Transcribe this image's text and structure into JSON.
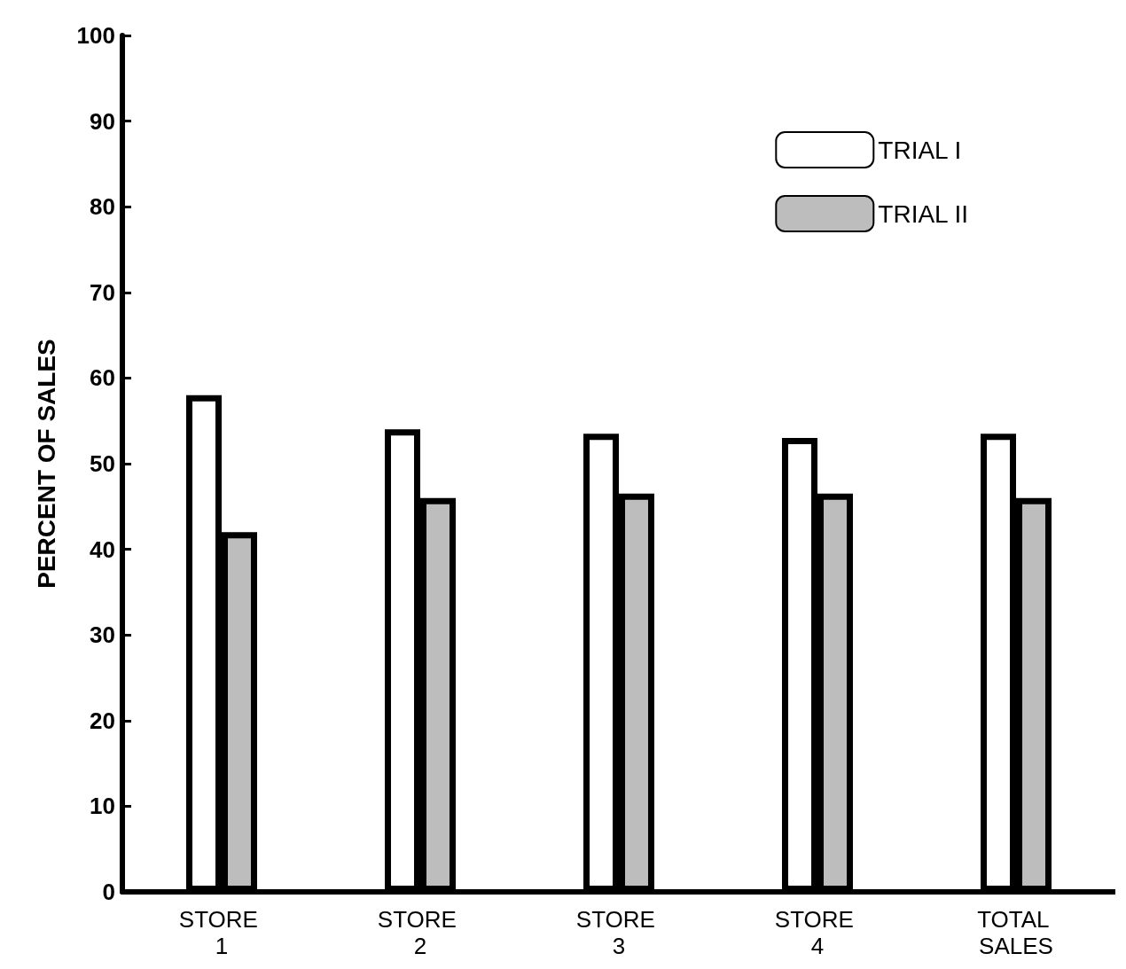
{
  "chart_data": {
    "type": "bar",
    "ylabel": "PERCENT OF SALES",
    "categories": [
      "STORE 1",
      "STORE 2",
      "STORE 3",
      "STORE 4",
      "TOTAL SALES"
    ],
    "series": [
      {
        "name": "TRIAL I",
        "color": "#ffffff",
        "values": [
          58,
          54,
          53.5,
          53,
          53.5
        ]
      },
      {
        "name": "TRIAL II",
        "color": "#bdbdbd",
        "values": [
          42,
          46,
          46.5,
          46.5,
          46
        ]
      }
    ],
    "ylim": [
      0,
      100
    ],
    "yticks": [
      0,
      10,
      20,
      30,
      40,
      50,
      60,
      70,
      80,
      90,
      100
    ],
    "grid": false,
    "legend": "top right"
  }
}
